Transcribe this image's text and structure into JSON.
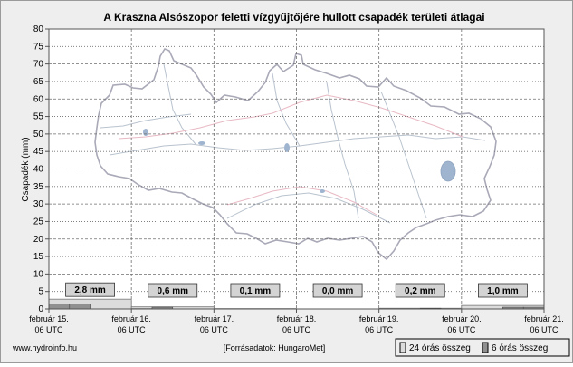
{
  "chart_data": {
    "type": "bar",
    "title": "A Kraszna Alsószopor feletti vízgyűjtőjére hullott csapadék területi átlagai",
    "ylabel": "Csapadék (mm)",
    "ylim": [
      0,
      80
    ],
    "yticks": [
      0,
      5,
      10,
      15,
      20,
      25,
      30,
      35,
      40,
      45,
      50,
      55,
      60,
      65,
      70,
      75,
      80
    ],
    "x_ticks": [
      {
        "date": "február 15.",
        "time": "06 UTC"
      },
      {
        "date": "február 16.",
        "time": "06 UTC"
      },
      {
        "date": "február 17.",
        "time": "06 UTC"
      },
      {
        "date": "február 18.",
        "time": "06 UTC"
      },
      {
        "date": "február 19.",
        "time": "06 UTC"
      },
      {
        "date": "február 20.",
        "time": "06 UTC"
      },
      {
        "date": "február 21.",
        "time": "06 UTC"
      }
    ],
    "grid": true,
    "legend_position": "bottom-right",
    "series": [
      {
        "name": "24 órás összeg",
        "color": "#dcdcdc",
        "values": [
          2.8,
          0.6,
          0.1,
          0.0,
          0.2,
          1.0
        ]
      },
      {
        "name": "6 órás összeg",
        "color": "#909090",
        "values": [
          1.4,
          1.4,
          0.0,
          0.0,
          0.1,
          0.5,
          0.0,
          0.0,
          0.0,
          0.0,
          0.0,
          0.0,
          0.0,
          0.0,
          0.0,
          0.0,
          0.0,
          0.0,
          0.2,
          0.0,
          0.0,
          0.0,
          0.5,
          0.5
        ]
      }
    ],
    "data_labels": [
      "2,8 mm",
      "0,6 mm",
      "0,1 mm",
      "0,0 mm",
      "0,2 mm",
      "1,0 mm"
    ]
  },
  "footer": {
    "website": "www.hydroinfo.hu",
    "source": "[Forrásadatok: HungaroMet]"
  },
  "legend": {
    "daily_label": "24 órás összeg",
    "six_hour_label": "6 órás összeg"
  },
  "colors": {
    "background": "#eeeeee",
    "plot_background": "#ffffff",
    "grid": "#6f6f6f",
    "map_outline": "#a9a9b8",
    "map_rivers": "#b9c3ce",
    "map_border": "#e8b9c4",
    "map_lake": "#9fb4cf"
  }
}
